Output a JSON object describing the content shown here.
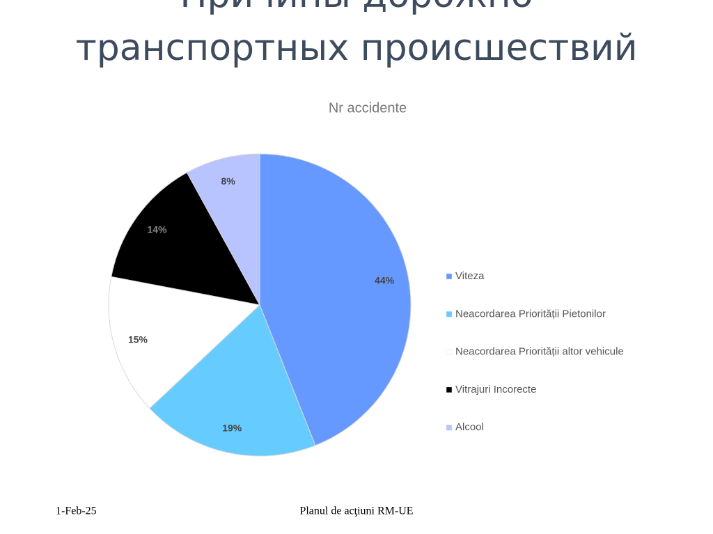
{
  "slide": {
    "title": [
      "Причины дорожно",
      "транспортных происшествий"
    ],
    "date": "1-Feb-25",
    "footer": "Planul de acţiuni RM-UE"
  },
  "chart_data": {
    "type": "pie",
    "title": "Nr accidente",
    "categories": [
      "Viteza",
      "Neacordarea Priorității Pietonilor",
      "Neacordarea Priorității altor vehicule",
      "Vitrajuri Incorecte",
      "Alcool"
    ],
    "values": [
      44,
      19,
      15,
      14,
      8
    ],
    "value_labels": [
      "44%",
      "19%",
      "15%",
      "14%",
      "8%"
    ],
    "colors": [
      "#6699ff",
      "#66ccff",
      "#ffffff",
      "#000000",
      "#b8c4ff"
    ],
    "legend": "right"
  }
}
